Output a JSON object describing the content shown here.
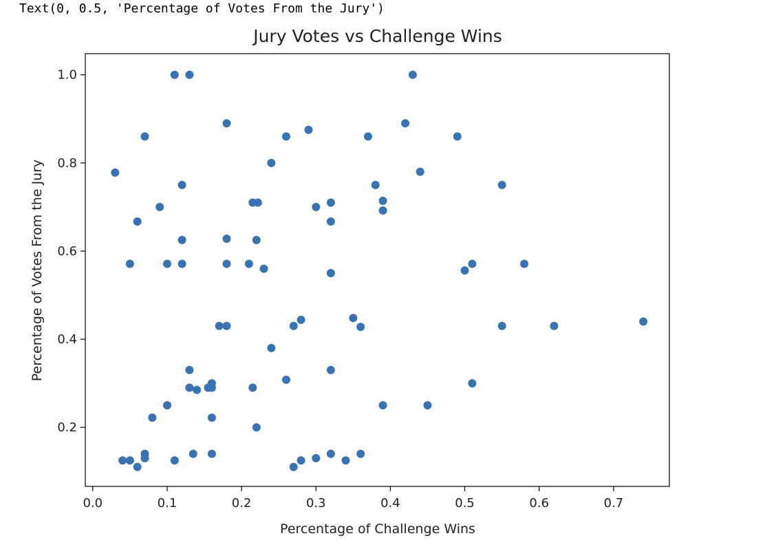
{
  "output_repr": "Text(0, 0.5, 'Percentage of Votes From the Jury')",
  "chart_data": {
    "type": "scatter",
    "title": "Jury Votes vs Challenge Wins",
    "xlabel": "Percentage of Challenge Wins",
    "ylabel": "Percentage of Votes From the Jury",
    "xlim": [
      -0.01,
      0.775
    ],
    "ylim": [
      0.066,
      1.048
    ],
    "xticks": [
      0.0,
      0.1,
      0.2,
      0.3,
      0.4,
      0.5,
      0.6,
      0.7
    ],
    "xtick_labels": [
      "0.0",
      "0.1",
      "0.2",
      "0.3",
      "0.4",
      "0.5",
      "0.6",
      "0.7"
    ],
    "yticks": [
      0.2,
      0.4,
      0.6,
      0.8,
      1.0
    ],
    "ytick_labels": [
      "0.2",
      "0.4",
      "0.6",
      "0.8",
      "1.0"
    ],
    "grid": false,
    "color": "#3a73b1",
    "points": [
      {
        "x": 0.11,
        "y": 1.0
      },
      {
        "x": 0.13,
        "y": 1.0
      },
      {
        "x": 0.43,
        "y": 1.0
      },
      {
        "x": 0.18,
        "y": 0.89
      },
      {
        "x": 0.42,
        "y": 0.89
      },
      {
        "x": 0.29,
        "y": 0.875
      },
      {
        "x": 0.07,
        "y": 0.86
      },
      {
        "x": 0.26,
        "y": 0.86
      },
      {
        "x": 0.37,
        "y": 0.86
      },
      {
        "x": 0.49,
        "y": 0.86
      },
      {
        "x": 0.24,
        "y": 0.8
      },
      {
        "x": 0.03,
        "y": 0.778
      },
      {
        "x": 0.44,
        "y": 0.78
      },
      {
        "x": 0.12,
        "y": 0.75
      },
      {
        "x": 0.38,
        "y": 0.75
      },
      {
        "x": 0.55,
        "y": 0.75
      },
      {
        "x": 0.215,
        "y": 0.71
      },
      {
        "x": 0.222,
        "y": 0.71
      },
      {
        "x": 0.32,
        "y": 0.71
      },
      {
        "x": 0.39,
        "y": 0.714
      },
      {
        "x": 0.09,
        "y": 0.7
      },
      {
        "x": 0.3,
        "y": 0.7
      },
      {
        "x": 0.39,
        "y": 0.692
      },
      {
        "x": 0.06,
        "y": 0.667
      },
      {
        "x": 0.32,
        "y": 0.667
      },
      {
        "x": 0.12,
        "y": 0.625
      },
      {
        "x": 0.18,
        "y": 0.628
      },
      {
        "x": 0.22,
        "y": 0.625
      },
      {
        "x": 0.05,
        "y": 0.571
      },
      {
        "x": 0.1,
        "y": 0.571
      },
      {
        "x": 0.12,
        "y": 0.571
      },
      {
        "x": 0.18,
        "y": 0.571
      },
      {
        "x": 0.21,
        "y": 0.571
      },
      {
        "x": 0.23,
        "y": 0.56
      },
      {
        "x": 0.32,
        "y": 0.55
      },
      {
        "x": 0.5,
        "y": 0.556
      },
      {
        "x": 0.51,
        "y": 0.571
      },
      {
        "x": 0.58,
        "y": 0.571
      },
      {
        "x": 0.17,
        "y": 0.43
      },
      {
        "x": 0.18,
        "y": 0.43
      },
      {
        "x": 0.27,
        "y": 0.43
      },
      {
        "x": 0.28,
        "y": 0.444
      },
      {
        "x": 0.35,
        "y": 0.448
      },
      {
        "x": 0.36,
        "y": 0.428
      },
      {
        "x": 0.55,
        "y": 0.43
      },
      {
        "x": 0.62,
        "y": 0.43
      },
      {
        "x": 0.74,
        "y": 0.44
      },
      {
        "x": 0.24,
        "y": 0.38
      },
      {
        "x": 0.13,
        "y": 0.33
      },
      {
        "x": 0.32,
        "y": 0.33
      },
      {
        "x": 0.26,
        "y": 0.308
      },
      {
        "x": 0.16,
        "y": 0.3
      },
      {
        "x": 0.51,
        "y": 0.3
      },
      {
        "x": 0.13,
        "y": 0.29
      },
      {
        "x": 0.155,
        "y": 0.29
      },
      {
        "x": 0.16,
        "y": 0.29
      },
      {
        "x": 0.215,
        "y": 0.29
      },
      {
        "x": 0.14,
        "y": 0.285
      },
      {
        "x": 0.1,
        "y": 0.25
      },
      {
        "x": 0.39,
        "y": 0.25
      },
      {
        "x": 0.45,
        "y": 0.25
      },
      {
        "x": 0.08,
        "y": 0.222
      },
      {
        "x": 0.16,
        "y": 0.222
      },
      {
        "x": 0.22,
        "y": 0.2
      },
      {
        "x": 0.07,
        "y": 0.14
      },
      {
        "x": 0.135,
        "y": 0.14
      },
      {
        "x": 0.16,
        "y": 0.14
      },
      {
        "x": 0.32,
        "y": 0.14
      },
      {
        "x": 0.36,
        "y": 0.14
      },
      {
        "x": 0.04,
        "y": 0.125
      },
      {
        "x": 0.05,
        "y": 0.125
      },
      {
        "x": 0.07,
        "y": 0.13
      },
      {
        "x": 0.11,
        "y": 0.125
      },
      {
        "x": 0.28,
        "y": 0.125
      },
      {
        "x": 0.3,
        "y": 0.13
      },
      {
        "x": 0.34,
        "y": 0.125
      },
      {
        "x": 0.06,
        "y": 0.11
      },
      {
        "x": 0.27,
        "y": 0.11
      }
    ]
  }
}
